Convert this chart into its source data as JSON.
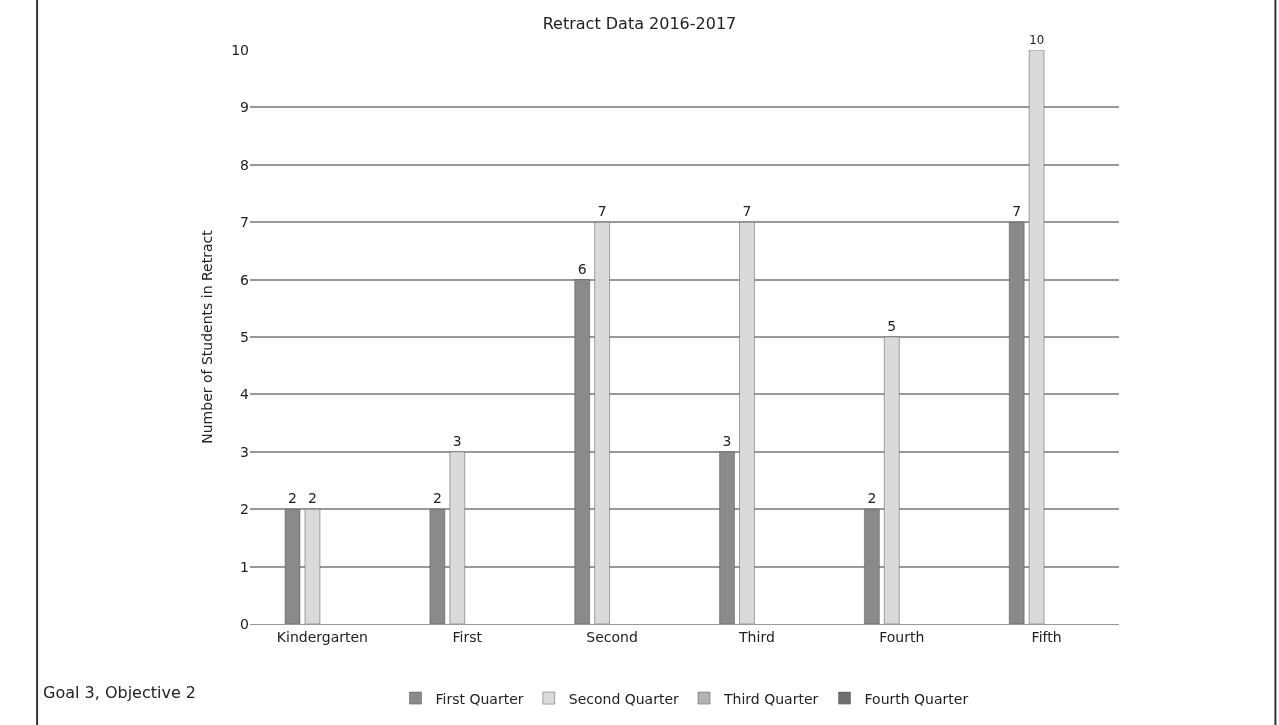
{
  "chart_data": {
    "type": "bar",
    "title": "Retract Data 2016-2017",
    "ylabel": "Number of Students in Retract",
    "categories": [
      "Kindergarten",
      "First",
      "Second",
      "Third",
      "Fourth",
      "Fifth"
    ],
    "series": [
      {
        "name": "First Quarter",
        "color": "#8a8a8a",
        "values": [
          2,
          2,
          6,
          3,
          2,
          7
        ]
      },
      {
        "name": "Second Quarter",
        "color": "#dadada",
        "values": [
          2,
          3,
          7,
          7,
          5,
          10
        ]
      },
      {
        "name": "Third Quarter",
        "color": "#b3b3b3",
        "values": [
          null,
          null,
          null,
          null,
          null,
          null
        ]
      },
      {
        "name": "Fourth Quarter",
        "color": "#6f6f6f",
        "values": [
          null,
          null,
          null,
          null,
          null,
          null
        ]
      }
    ],
    "ylim": [
      0,
      10
    ],
    "yticks": [
      0,
      1,
      2,
      3,
      4,
      5,
      6,
      7,
      8,
      9,
      10
    ],
    "grid": "y",
    "legend": "bottom",
    "data_labels": true,
    "annotations": [
      "Goal 3, Objective 2"
    ]
  }
}
